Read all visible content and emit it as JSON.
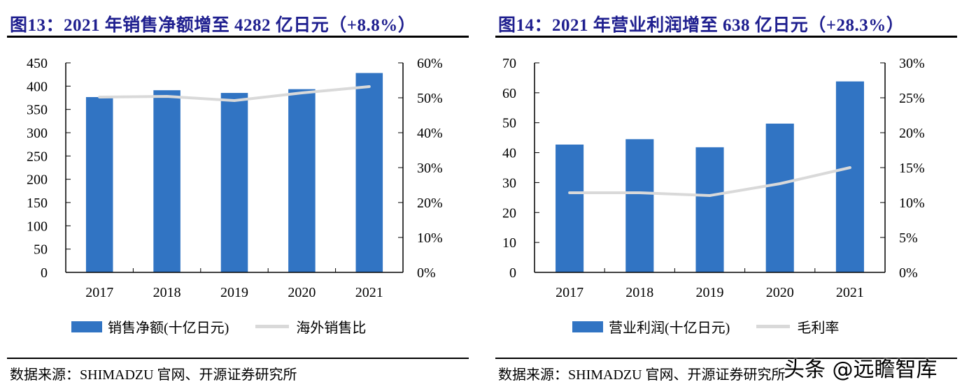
{
  "panels": [
    {
      "title": "图13：2021 年销售净额增至 4282 亿日元（+8.8%）",
      "source": "数据来源：SHIMADZU 官网、开源证券研究所",
      "legend": {
        "bar_label": "销售净额(十亿日元)",
        "line_label": "海外销售比"
      }
    },
    {
      "title": "图14：2021 年营业利润增至 638 亿日元（+28.3%）",
      "source": "数据来源：SHIMADZU 官网、开源证券研究所",
      "legend": {
        "bar_label": "营业利润(十亿日元)",
        "line_label": "毛利率"
      }
    }
  ],
  "watermark": "头条 @远瞻智库",
  "colors": {
    "bar": "#3174c3",
    "line": "#d9d9d9",
    "title": "#1f1f8f"
  },
  "chart_data": [
    {
      "type": "bar",
      "title": "2021 年销售净额增至 4282 亿日元（+8.8%）",
      "categories": [
        "2017",
        "2018",
        "2019",
        "2020",
        "2021"
      ],
      "series": [
        {
          "name": "销售净额(十亿日元)",
          "type": "bar",
          "axis": "left",
          "values": [
            376.5,
            391.2,
            385.4,
            393.5,
            428.2
          ]
        },
        {
          "name": "海外销售比",
          "type": "line",
          "axis": "right",
          "values": [
            50.2,
            50.4,
            49.2,
            51.4,
            53.2
          ]
        }
      ],
      "y_left": {
        "range": [
          0,
          450
        ],
        "ticks": [
          0,
          50,
          100,
          150,
          200,
          250,
          300,
          350,
          400,
          450
        ],
        "labels": [
          "0",
          "50",
          "100",
          "150",
          "200",
          "250",
          "300",
          "350",
          "400",
          "450"
        ]
      },
      "y_right": {
        "range": [
          0,
          60
        ],
        "ticks": [
          0,
          10,
          20,
          30,
          40,
          50,
          60
        ],
        "labels": [
          "0%",
          "10%",
          "20%",
          "30%",
          "40%",
          "50%",
          "60%"
        ]
      },
      "grid": false,
      "legend_position": "bottom"
    },
    {
      "type": "bar",
      "title": "2021 年营业利润增至 638 亿日元（+28.3%）",
      "categories": [
        "2017",
        "2018",
        "2019",
        "2020",
        "2021"
      ],
      "series": [
        {
          "name": "营业利润(十亿日元)",
          "type": "bar",
          "axis": "left",
          "values": [
            42.7,
            44.5,
            41.8,
            49.7,
            63.8
          ]
        },
        {
          "name": "毛利率",
          "type": "line",
          "axis": "right",
          "values": [
            11.4,
            11.4,
            11.0,
            12.7,
            15.0
          ]
        }
      ],
      "y_left": {
        "range": [
          0,
          70
        ],
        "ticks": [
          0,
          10,
          20,
          30,
          40,
          50,
          60,
          70
        ],
        "labels": [
          "0",
          "10",
          "20",
          "30",
          "40",
          "50",
          "60",
          "70"
        ]
      },
      "y_right": {
        "range": [
          0,
          30
        ],
        "ticks": [
          0,
          5,
          10,
          15,
          20,
          25,
          30
        ],
        "labels": [
          "0%",
          "5%",
          "10%",
          "15%",
          "20%",
          "25%",
          "30%"
        ]
      },
      "grid": false,
      "legend_position": "bottom"
    }
  ]
}
